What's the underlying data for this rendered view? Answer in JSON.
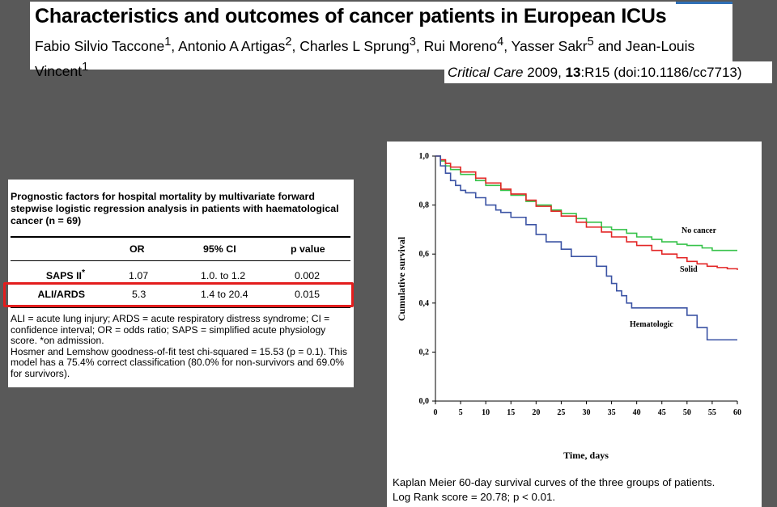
{
  "header": {
    "title": "Characteristics and outcomes of cancer patients in European ICUs",
    "authors": [
      {
        "name": "Fabio Silvio Taccone",
        "sup": "1",
        "sep": ", "
      },
      {
        "name": "Antonio A Artigas",
        "sup": "2",
        "sep": ", "
      },
      {
        "name": "Charles L Sprung",
        "sup": "3",
        "sep": ", "
      },
      {
        "name": "Rui Moreno",
        "sup": "4",
        "sep": ", "
      },
      {
        "name": "Yasser Sakr",
        "sup": "5",
        "sep": " and "
      },
      {
        "name": "Jean-Louis Vincent",
        "sup": "1",
        "sep": ""
      }
    ],
    "citation": {
      "journal": "Critical Care",
      "year": " 2009, ",
      "volume": "13",
      "rest": ":R15 (doi:10.1186/cc7713)"
    }
  },
  "table": {
    "caption": "Prognostic factors for hospital mortality by multivariate forward stepwise logistic regression analysis in patients with haematological cancer (n = 69)",
    "columns": [
      "OR",
      "95% CI",
      "p value"
    ],
    "rows": [
      {
        "factor": "SAPS II",
        "factor_sup": "*",
        "or": "1.07",
        "ci": "1.0. to 1.2",
        "p": "0.002"
      },
      {
        "factor": "ALI/ARDS",
        "factor_sup": "",
        "or": "5.3",
        "ci": "1.4 to 20.4",
        "p": "0.015"
      }
    ],
    "footnote": [
      "ALI = acute lung injury; ARDS = acute respiratory distress syndrome; CI = confidence interval; OR = odds ratio; SAPS = simplified acute physiology score. *on admission.",
      "Hosmer and Lemshow goodness-of-fit test chi-squared = 15.53 (p = 0.1). This model has a 75.4% correct classification (80.0% for non-survivors and 69.0% for survivors)."
    ],
    "highlight_color": "#e31d1d"
  },
  "figure": {
    "caption_lines": [
      "Kaplan Meier 60-day survival curves of the three groups of patients.",
      "Log Rank score = 20.78; p < 0.01."
    ]
  },
  "chart_data": {
    "type": "line",
    "xlabel": "Time, days",
    "ylabel": "Cumulative survival",
    "xlim": [
      0,
      60
    ],
    "ylim": [
      0,
      1
    ],
    "x_ticks": [
      "0",
      "5",
      "10",
      "15",
      "20",
      "25",
      "30",
      "35",
      "40",
      "45",
      "50",
      "55",
      "60"
    ],
    "y_ticks": [
      "0,0",
      "0,2",
      "0,4",
      "0,6",
      "0,8",
      "1,0"
    ],
    "grid": false,
    "series": [
      {
        "name": "No cancer",
        "color": "#36c24a",
        "x": [
          0,
          1,
          2,
          3,
          5,
          8,
          10,
          13,
          15,
          18,
          20,
          23,
          25,
          28,
          30,
          33,
          35,
          38,
          40,
          43,
          45,
          48,
          50,
          53,
          55,
          58,
          60
        ],
        "y": [
          1.0,
          0.98,
          0.96,
          0.945,
          0.925,
          0.9,
          0.88,
          0.86,
          0.84,
          0.815,
          0.8,
          0.78,
          0.765,
          0.745,
          0.73,
          0.71,
          0.7,
          0.685,
          0.67,
          0.66,
          0.65,
          0.64,
          0.635,
          0.625,
          0.615,
          0.615,
          0.615
        ]
      },
      {
        "name": "Solid",
        "color": "#e32626",
        "x": [
          0,
          1,
          2,
          3,
          5,
          8,
          10,
          13,
          15,
          18,
          20,
          23,
          25,
          28,
          30,
          33,
          35,
          38,
          40,
          43,
          45,
          48,
          50,
          52,
          54,
          56,
          58,
          60
        ],
        "y": [
          1.0,
          0.985,
          0.97,
          0.955,
          0.935,
          0.91,
          0.89,
          0.865,
          0.845,
          0.82,
          0.795,
          0.775,
          0.755,
          0.73,
          0.71,
          0.69,
          0.67,
          0.65,
          0.635,
          0.615,
          0.6,
          0.585,
          0.57,
          0.56,
          0.55,
          0.545,
          0.54,
          0.535
        ]
      },
      {
        "name": "Hematologic",
        "color": "#3b53a4",
        "x": [
          0,
          1,
          2,
          3,
          4,
          5,
          6,
          8,
          10,
          12,
          13,
          15,
          18,
          20,
          22,
          25,
          27,
          30,
          32,
          34,
          35,
          36,
          37,
          38,
          39,
          40,
          42,
          45,
          48,
          50,
          52,
          54,
          56,
          60
        ],
        "y": [
          1.0,
          0.96,
          0.93,
          0.9,
          0.88,
          0.86,
          0.85,
          0.83,
          0.8,
          0.78,
          0.77,
          0.75,
          0.72,
          0.68,
          0.65,
          0.62,
          0.59,
          0.59,
          0.55,
          0.51,
          0.48,
          0.45,
          0.43,
          0.4,
          0.38,
          0.38,
          0.38,
          0.38,
          0.38,
          0.35,
          0.3,
          0.25,
          0.25,
          0.25
        ]
      }
    ]
  }
}
